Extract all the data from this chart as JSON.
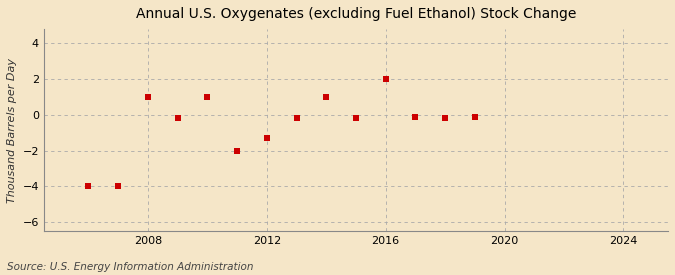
{
  "title": "Annual U.S. Oxygenates (excluding Fuel Ethanol) Stock Change",
  "ylabel": "Thousand Barrels per Day",
  "source": "Source: U.S. Energy Information Administration",
  "background_color": "#f5e6c8",
  "plot_background_color": "#f5e6c8",
  "x_values": [
    2006,
    2007,
    2008,
    2009,
    2010,
    2011,
    2012,
    2013,
    2014,
    2015,
    2016,
    2017,
    2018,
    2019
  ],
  "y_values": [
    -4.0,
    -4.0,
    1.0,
    -0.2,
    1.0,
    -2.0,
    -1.3,
    -0.2,
    1.0,
    -0.2,
    2.0,
    -0.1,
    -0.2,
    -0.1
  ],
  "marker_color": "#cc0000",
  "marker_style": "s",
  "marker_size": 5,
  "xlim": [
    2004.5,
    2025.5
  ],
  "ylim": [
    -6.5,
    4.8
  ],
  "yticks": [
    -6,
    -4,
    -2,
    0,
    2,
    4
  ],
  "xticks": [
    2008,
    2012,
    2016,
    2020,
    2024
  ],
  "grid_color": "#aaaaaa",
  "grid_linestyle": "--",
  "title_fontsize": 10,
  "label_fontsize": 8,
  "tick_fontsize": 8,
  "source_fontsize": 7.5
}
